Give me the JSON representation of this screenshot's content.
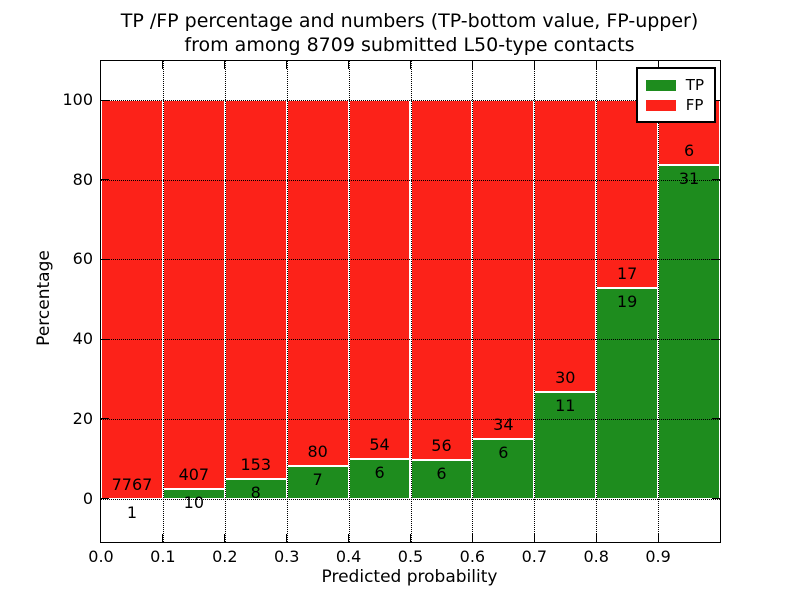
{
  "title": {
    "line1": "TP /FP percentage and numbers (TP-bottom value, FP-upper)",
    "line2": "from among 8709 submitted L50-type contacts"
  },
  "chart_data": {
    "type": "bar",
    "variant": "stacked-percentage-histogram",
    "title": "TP /FP percentage and numbers (TP-bottom value, FP-upper)\nfrom among 8709 submitted L50-type contacts",
    "xlabel": "Predicted probability",
    "ylabel": "Percentage",
    "xlim": [
      0.0,
      1.0
    ],
    "ylim": [
      -10.9,
      109.8
    ],
    "grid": "dotted",
    "x_ticks": [
      0.0,
      0.1,
      0.2,
      0.3,
      0.4,
      0.5,
      0.6,
      0.7,
      0.8,
      0.9
    ],
    "x_tick_labels": [
      "0.0",
      "0.1",
      "0.2",
      "0.3",
      "0.4",
      "0.5",
      "0.6",
      "0.7",
      "0.8",
      "0.9"
    ],
    "y_ticks": [
      0,
      20,
      40,
      60,
      80,
      100
    ],
    "y_tick_labels": [
      "0",
      "20",
      "40",
      "60",
      "80",
      "100"
    ],
    "legend": {
      "position": "upper right",
      "entries": [
        {
          "label": "TP",
          "color": "#1e8c1e"
        },
        {
          "label": "FP",
          "color": "#fc2219"
        }
      ]
    },
    "colors": {
      "tp": "#1e8c1e",
      "fp": "#fc2219",
      "bar_edge": "#ffffff"
    },
    "total_contacts": 8709,
    "bins": [
      {
        "range": [
          0.0,
          0.1
        ],
        "tp": 1,
        "fp": 7767,
        "tp_percent": 0.013
      },
      {
        "range": [
          0.1,
          0.2
        ],
        "tp": 10,
        "fp": 407,
        "tp_percent": 2.398
      },
      {
        "range": [
          0.2,
          0.3
        ],
        "tp": 8,
        "fp": 153,
        "tp_percent": 4.969
      },
      {
        "range": [
          0.3,
          0.4
        ],
        "tp": 7,
        "fp": 80,
        "tp_percent": 8.046
      },
      {
        "range": [
          0.4,
          0.5
        ],
        "tp": 6,
        "fp": 54,
        "tp_percent": 10.0
      },
      {
        "range": [
          0.5,
          0.6
        ],
        "tp": 6,
        "fp": 56,
        "tp_percent": 9.677
      },
      {
        "range": [
          0.6,
          0.7
        ],
        "tp": 6,
        "fp": 34,
        "tp_percent": 15.0
      },
      {
        "range": [
          0.7,
          0.8
        ],
        "tp": 11,
        "fp": 30,
        "tp_percent": 26.829
      },
      {
        "range": [
          0.8,
          0.9
        ],
        "tp": 19,
        "fp": 17,
        "tp_percent": 52.778
      },
      {
        "range": [
          0.9,
          1.0
        ],
        "tp": 31,
        "fp": 6,
        "tp_percent": 83.784
      }
    ]
  }
}
